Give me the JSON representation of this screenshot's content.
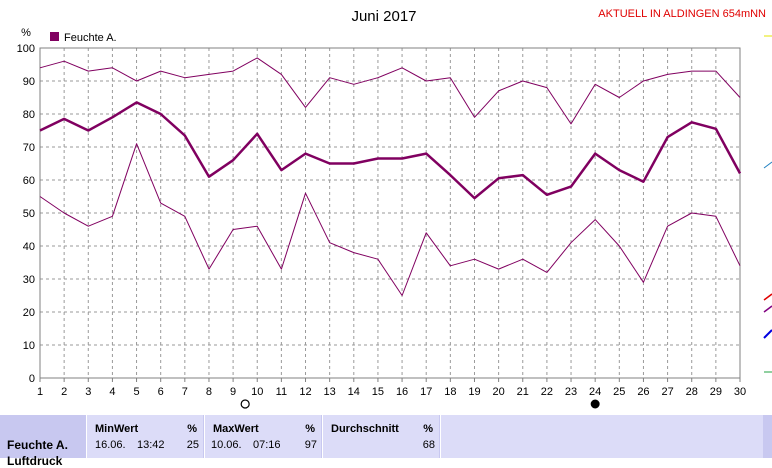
{
  "chart_data": {
    "type": "line",
    "title": "Juni 2017",
    "subtitle": "AKTUELL IN ALDINGEN 654mNN",
    "ylabel": "%",
    "ylim": [
      0,
      100
    ],
    "yticks": [
      0,
      10,
      20,
      30,
      40,
      50,
      60,
      70,
      80,
      90,
      100
    ],
    "grid": true,
    "legend": "top-left",
    "x": [
      1,
      2,
      3,
      4,
      5,
      6,
      7,
      8,
      9,
      10,
      11,
      12,
      13,
      14,
      15,
      16,
      17,
      18,
      19,
      20,
      21,
      22,
      23,
      24,
      25,
      26,
      27,
      28,
      29,
      30
    ],
    "series": [
      {
        "name": "Feuchte A.",
        "role": "max",
        "color": "#800060",
        "values": [
          94,
          96,
          93,
          94,
          90,
          93,
          91,
          92,
          93,
          97,
          92,
          82,
          91,
          89,
          91,
          94,
          90,
          91,
          79,
          87,
          90,
          88,
          77,
          89,
          85,
          90,
          92,
          93,
          93,
          85
        ]
      },
      {
        "name": "Feuchte A.",
        "role": "mean",
        "color": "#800060",
        "values": [
          75,
          78.5,
          75,
          79,
          83.5,
          80,
          73.5,
          61,
          66,
          74,
          63,
          68,
          65,
          65,
          66.5,
          66.5,
          68,
          61.5,
          54.5,
          60.5,
          61.5,
          55.5,
          58,
          68,
          63,
          59.5,
          73,
          77.5,
          75.5,
          62
        ]
      },
      {
        "name": "Feuchte A.",
        "role": "min",
        "color": "#800060",
        "values": [
          55,
          50,
          46,
          49,
          71,
          53,
          49,
          33,
          45,
          46,
          33,
          56,
          41,
          38,
          36,
          25,
          44,
          34,
          36,
          33,
          36,
          32,
          41,
          48,
          40,
          29,
          46,
          50,
          49,
          34
        ]
      }
    ],
    "moon_markers": [
      {
        "day": 9.5,
        "phase": "full"
      },
      {
        "day": 24,
        "phase": "new"
      }
    ]
  },
  "legend": {
    "label": "Feuchte A.",
    "color": "#800060"
  },
  "stats": {
    "sensor": "Feuchte A.",
    "sensor_second_line": "Luftdruck",
    "min_header": "MinWert",
    "min_unit": "%",
    "min_date": "16.06.",
    "min_time": "13:42",
    "min_value": "25",
    "max_header": "MaxWert",
    "max_unit": "%",
    "max_date": "10.06.",
    "max_time": "07:16",
    "max_value": "97",
    "avg_header": "Durchschnitt",
    "avg_unit": "%",
    "avg_value": "68"
  }
}
